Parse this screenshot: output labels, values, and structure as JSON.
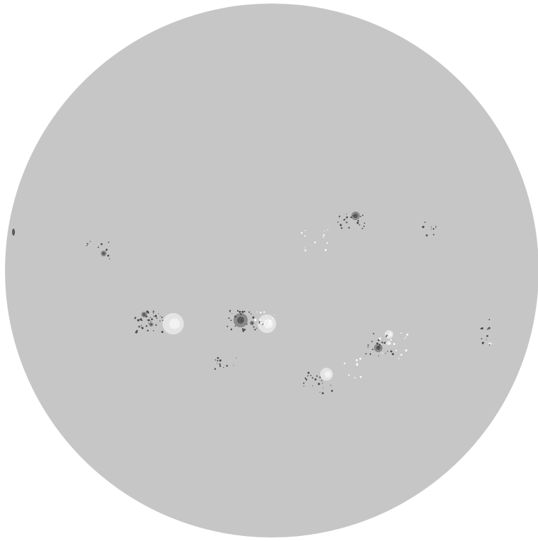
{
  "image": {
    "background_color": "#ffffff",
    "disk_color": "#c6c6c6",
    "umbra_color": "#5a5a5a",
    "penumbra_color": "#8a8a8a",
    "plage_color": "#f2f2f2",
    "plage_halo_color": "#e4e4e4",
    "speckle_dark_color": "#4a4a4a",
    "speckle_light_color": "#ffffff"
  }
}
